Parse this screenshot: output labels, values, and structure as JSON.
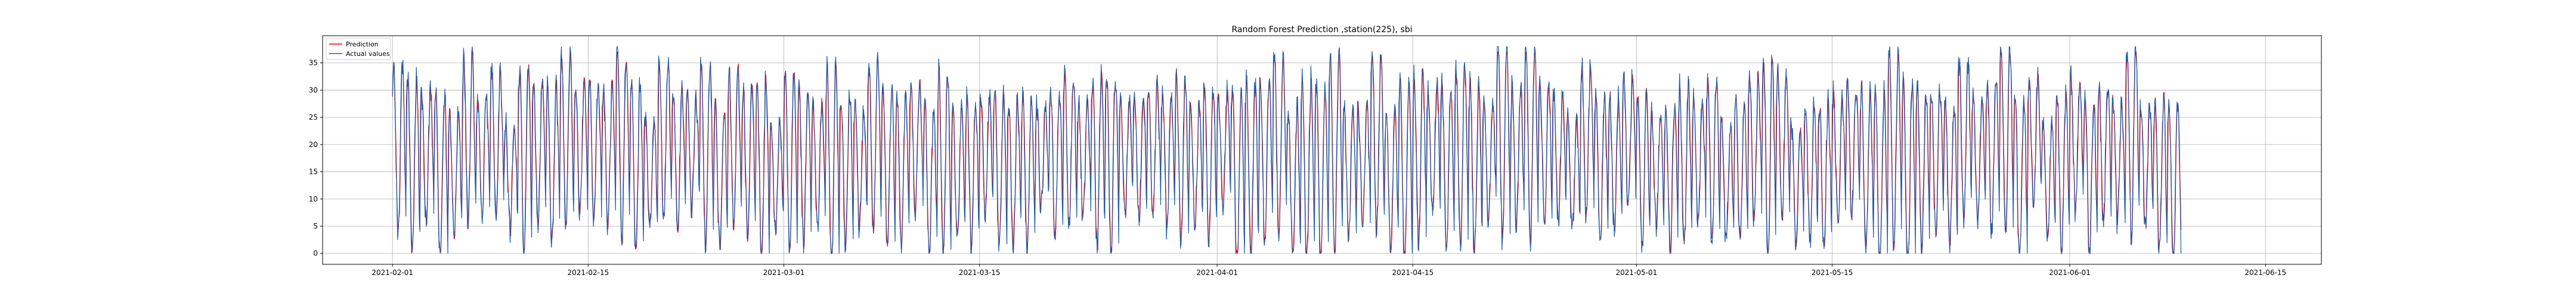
{
  "chart_data": {
    "type": "line",
    "title": "Random Forest Prediction ,station(225), sbi",
    "xlabel": "",
    "ylabel": "",
    "x_range": [
      "2021-01-27",
      "2021-06-19"
    ],
    "x_ticks": [
      "2021-02-01",
      "2021-02-15",
      "2021-03-01",
      "2021-03-15",
      "2021-04-01",
      "2021-04-15",
      "2021-05-01",
      "2021-05-15",
      "2021-06-01",
      "2021-06-15"
    ],
    "ylim": [
      -2,
      40
    ],
    "y_ticks": [
      0,
      5,
      10,
      15,
      20,
      25,
      30,
      35
    ],
    "grid": true,
    "legend_position": "top-left",
    "data_range": [
      "2021-02-01",
      "2021-06-09"
    ],
    "series": [
      {
        "name": "Prediction",
        "color": "#e8000b"
      },
      {
        "name": "Actual values",
        "color": "#1f5fa6"
      }
    ]
  }
}
